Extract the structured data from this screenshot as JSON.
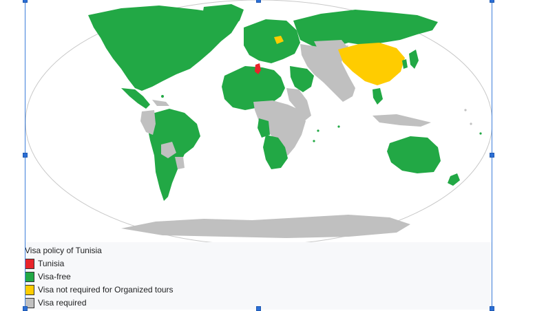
{
  "caption": {
    "title": "Visa policy of Tunisia"
  },
  "legend": [
    {
      "label": "Tunisia",
      "color": "#e8242a"
    },
    {
      "label": "Visa-free",
      "color": "#22a845"
    },
    {
      "label": "Visa not required for Organized tours",
      "color": "#ffcc00"
    },
    {
      "label": "Visa required",
      "color": "#c0c0c0"
    }
  ],
  "colors": {
    "ocean": "#ffffff",
    "tunisia": "#e8242a",
    "visa_free": "#22a845",
    "organized_tours": "#ffcc00",
    "visa_required": "#c0c0c0",
    "selection": "#2b6fd6"
  }
}
